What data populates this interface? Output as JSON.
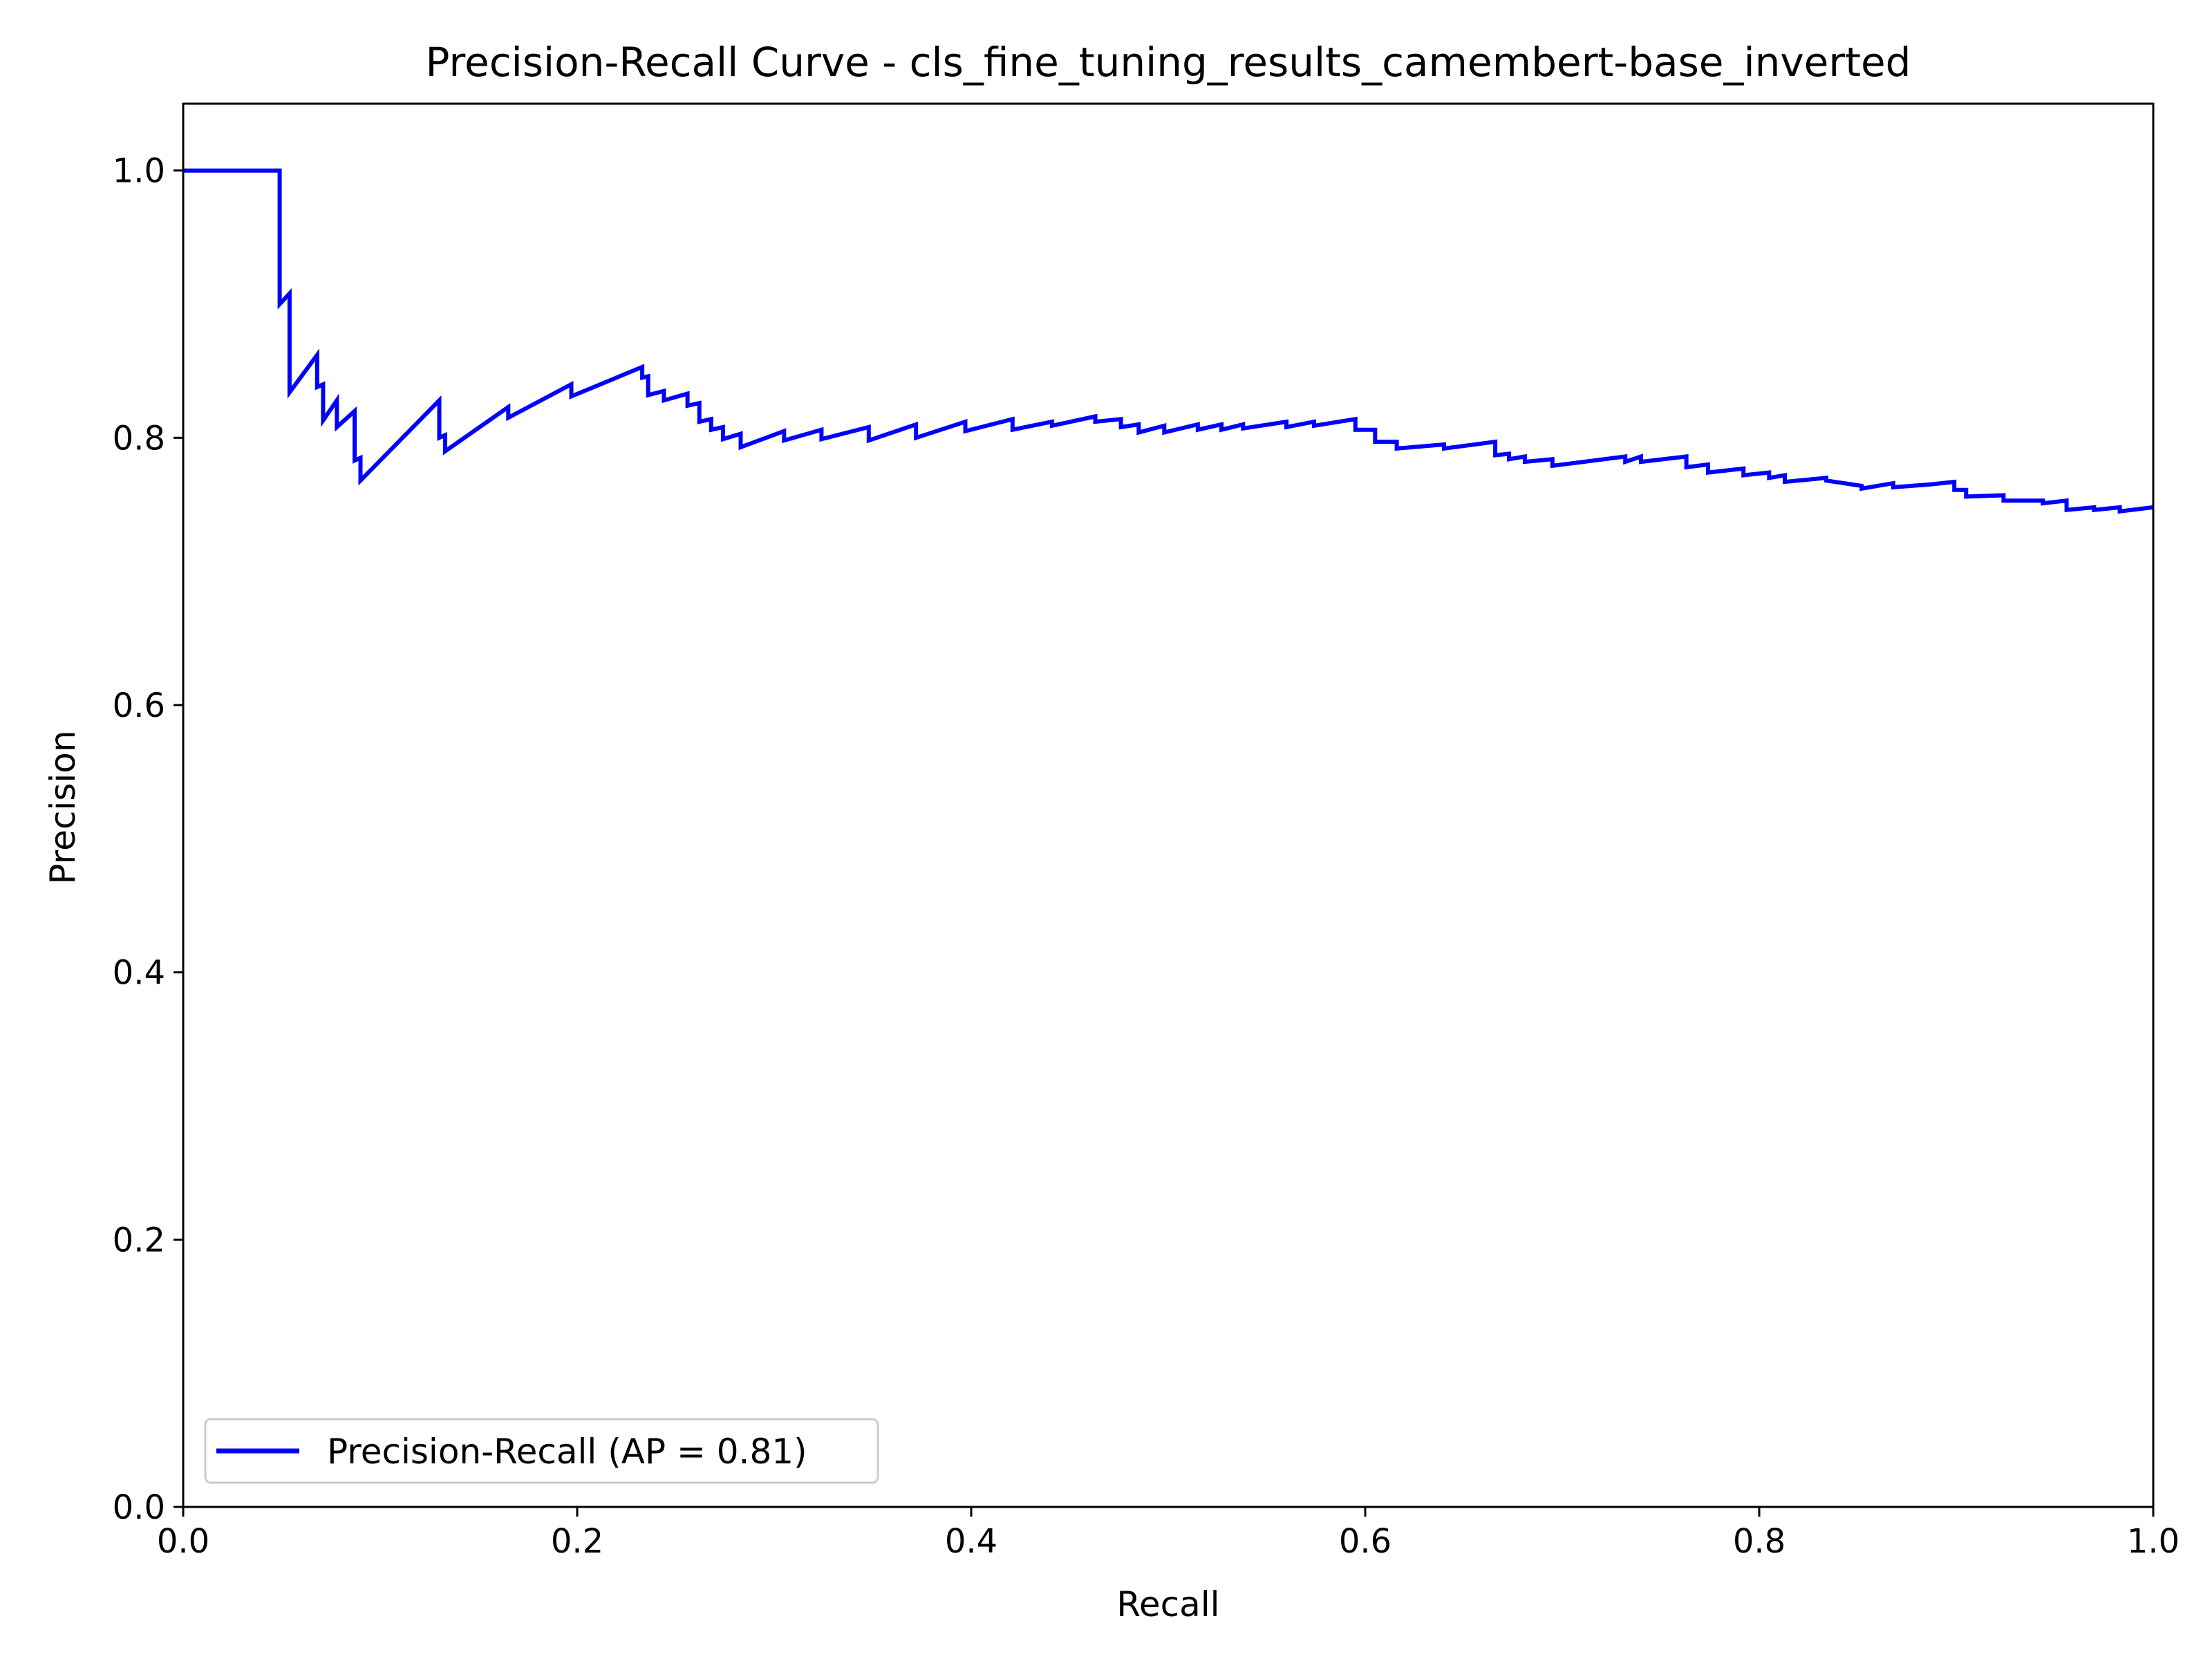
{
  "chart_data": {
    "type": "line",
    "title": "Precision-Recall Curve - cls_fine_tuning_results_camembert-base_inverted",
    "xlabel": "Recall",
    "ylabel": "Precision",
    "xlim": [
      0.0,
      1.0
    ],
    "ylim": [
      0.0,
      1.05
    ],
    "x_ticks": [
      "0.0",
      "0.2",
      "0.4",
      "0.6",
      "0.8",
      "1.0"
    ],
    "y_ticks": [
      "0.0",
      "0.2",
      "0.4",
      "0.6",
      "0.8",
      "1.0"
    ],
    "grid": false,
    "legend": {
      "position": "lower-left",
      "entries": [
        "Precision-Recall (AP = 0.81)"
      ]
    },
    "series": [
      {
        "name": "Precision-Recall (AP = 0.81)",
        "color": "#0000ff",
        "points": [
          [
            0.0,
            1.0
          ],
          [
            0.049,
            1.0
          ],
          [
            0.049,
            0.9
          ],
          [
            0.054,
            0.908
          ],
          [
            0.054,
            0.834
          ],
          [
            0.068,
            0.862
          ],
          [
            0.068,
            0.838
          ],
          [
            0.071,
            0.84
          ],
          [
            0.071,
            0.813
          ],
          [
            0.078,
            0.828
          ],
          [
            0.078,
            0.808
          ],
          [
            0.087,
            0.82
          ],
          [
            0.087,
            0.783
          ],
          [
            0.09,
            0.785
          ],
          [
            0.09,
            0.768
          ],
          [
            0.13,
            0.828
          ],
          [
            0.13,
            0.8
          ],
          [
            0.133,
            0.802
          ],
          [
            0.133,
            0.79
          ],
          [
            0.165,
            0.823
          ],
          [
            0.165,
            0.815
          ],
          [
            0.197,
            0.84
          ],
          [
            0.197,
            0.831
          ],
          [
            0.233,
            0.853
          ],
          [
            0.233,
            0.845
          ],
          [
            0.236,
            0.846
          ],
          [
            0.236,
            0.832
          ],
          [
            0.244,
            0.835
          ],
          [
            0.244,
            0.828
          ],
          [
            0.256,
            0.833
          ],
          [
            0.256,
            0.824
          ],
          [
            0.262,
            0.826
          ],
          [
            0.262,
            0.812
          ],
          [
            0.268,
            0.814
          ],
          [
            0.268,
            0.806
          ],
          [
            0.274,
            0.808
          ],
          [
            0.274,
            0.799
          ],
          [
            0.283,
            0.803
          ],
          [
            0.283,
            0.793
          ],
          [
            0.305,
            0.805
          ],
          [
            0.305,
            0.798
          ],
          [
            0.324,
            0.806
          ],
          [
            0.324,
            0.799
          ],
          [
            0.348,
            0.808
          ],
          [
            0.348,
            0.798
          ],
          [
            0.372,
            0.81
          ],
          [
            0.372,
            0.8
          ],
          [
            0.397,
            0.812
          ],
          [
            0.397,
            0.805
          ],
          [
            0.421,
            0.814
          ],
          [
            0.421,
            0.806
          ],
          [
            0.441,
            0.812
          ],
          [
            0.441,
            0.809
          ],
          [
            0.463,
            0.816
          ],
          [
            0.463,
            0.812
          ],
          [
            0.476,
            0.814
          ],
          [
            0.476,
            0.808
          ],
          [
            0.485,
            0.81
          ],
          [
            0.485,
            0.804
          ],
          [
            0.498,
            0.809
          ],
          [
            0.498,
            0.804
          ],
          [
            0.515,
            0.81
          ],
          [
            0.515,
            0.806
          ],
          [
            0.527,
            0.81
          ],
          [
            0.527,
            0.806
          ],
          [
            0.538,
            0.81
          ],
          [
            0.538,
            0.807
          ],
          [
            0.56,
            0.812
          ],
          [
            0.56,
            0.808
          ],
          [
            0.574,
            0.812
          ],
          [
            0.574,
            0.809
          ],
          [
            0.595,
            0.814
          ],
          [
            0.595,
            0.806
          ],
          [
            0.605,
            0.806
          ],
          [
            0.605,
            0.797
          ],
          [
            0.616,
            0.797
          ],
          [
            0.616,
            0.792
          ],
          [
            0.64,
            0.795
          ],
          [
            0.64,
            0.792
          ],
          [
            0.666,
            0.797
          ],
          [
            0.666,
            0.787
          ],
          [
            0.673,
            0.788
          ],
          [
            0.673,
            0.784
          ],
          [
            0.681,
            0.786
          ],
          [
            0.681,
            0.782
          ],
          [
            0.695,
            0.784
          ],
          [
            0.695,
            0.779
          ],
          [
            0.732,
            0.786
          ],
          [
            0.732,
            0.782
          ],
          [
            0.74,
            0.786
          ],
          [
            0.74,
            0.782
          ],
          [
            0.763,
            0.786
          ],
          [
            0.763,
            0.778
          ],
          [
            0.774,
            0.78
          ],
          [
            0.774,
            0.774
          ],
          [
            0.792,
            0.777
          ],
          [
            0.792,
            0.772
          ],
          [
            0.805,
            0.774
          ],
          [
            0.805,
            0.77
          ],
          [
            0.813,
            0.772
          ],
          [
            0.813,
            0.767
          ],
          [
            0.834,
            0.77
          ],
          [
            0.834,
            0.768
          ],
          [
            0.852,
            0.764
          ],
          [
            0.852,
            0.762
          ],
          [
            0.868,
            0.766
          ],
          [
            0.868,
            0.763
          ],
          [
            0.886,
            0.765
          ],
          [
            0.886,
            0.765
          ],
          [
            0.899,
            0.767
          ],
          [
            0.899,
            0.761
          ],
          [
            0.905,
            0.761
          ],
          [
            0.905,
            0.756
          ],
          [
            0.924,
            0.757
          ],
          [
            0.924,
            0.753
          ],
          [
            0.944,
            0.753
          ],
          [
            0.944,
            0.751
          ],
          [
            0.956,
            0.753
          ],
          [
            0.956,
            0.746
          ],
          [
            0.97,
            0.748
          ],
          [
            0.97,
            0.746
          ],
          [
            0.983,
            0.748
          ],
          [
            0.983,
            0.745
          ],
          [
            1.0,
            0.748
          ]
        ]
      }
    ]
  }
}
